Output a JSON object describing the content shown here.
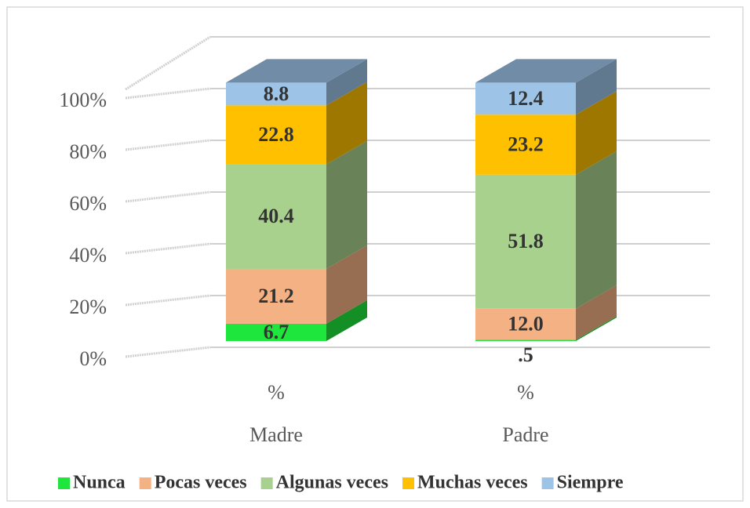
{
  "chart_data": {
    "type": "bar3d_stacked",
    "categories": [
      "Madre",
      "Padre"
    ],
    "category_units": [
      "%",
      "%"
    ],
    "series": [
      {
        "name": "Nunca",
        "color": "#1ee63c",
        "values": [
          6.7,
          0.5
        ],
        "value_labels": [
          "6.7",
          ".5"
        ]
      },
      {
        "name": "Pocas veces",
        "color": "#f4b183",
        "values": [
          21.2,
          12.0
        ],
        "value_labels": [
          "21.2",
          "12.0"
        ]
      },
      {
        "name": "Algunas veces",
        "color": "#a9d18e",
        "values": [
          40.4,
          51.8
        ],
        "value_labels": [
          "40.4",
          "51.8"
        ]
      },
      {
        "name": "Muchas veces",
        "color": "#ffc000",
        "values": [
          22.8,
          23.2
        ],
        "value_labels": [
          "22.8",
          "23.2"
        ]
      },
      {
        "name": "Siempre",
        "color": "#9dc3e6",
        "values": [
          8.8,
          12.4
        ],
        "value_labels": [
          "8.8",
          "12.4"
        ]
      }
    ],
    "ylim": [
      0,
      120
    ],
    "yticks": [
      {
        "value": 0,
        "label": "0%"
      },
      {
        "value": 20,
        "label": "20%"
      },
      {
        "value": 40,
        "label": "40%"
      },
      {
        "value": 60,
        "label": "60%"
      },
      {
        "value": 80,
        "label": "80%"
      },
      {
        "value": 100,
        "label": "100%"
      }
    ],
    "grid": true,
    "legend": "bottom"
  }
}
